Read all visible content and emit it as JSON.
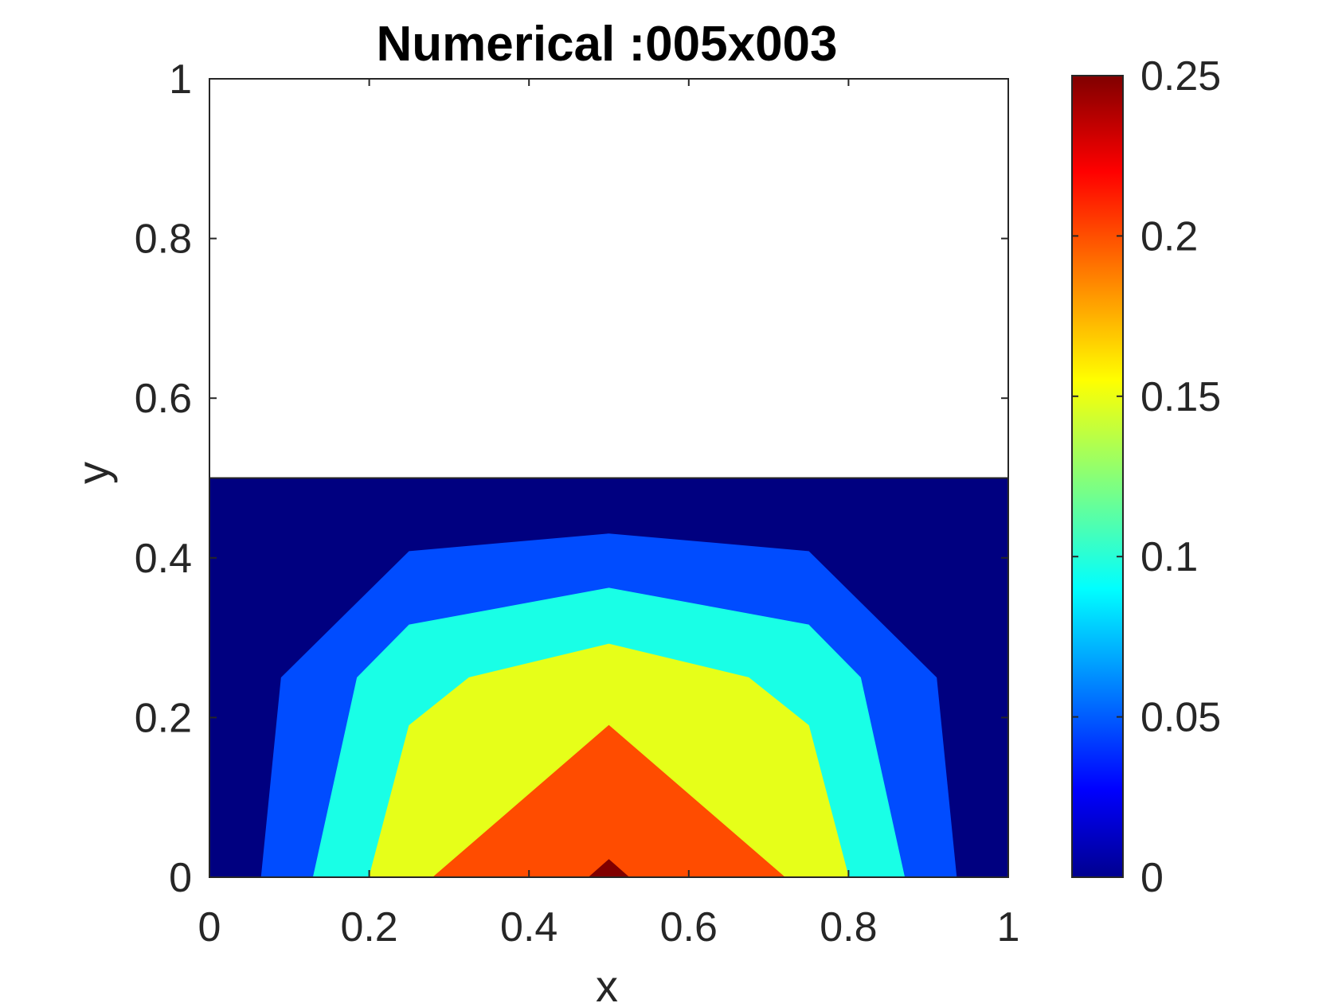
{
  "chart_data": {
    "type": "contour",
    "title": "Numerical :005x003",
    "xlabel": "x",
    "ylabel": "y",
    "xlim": [
      0,
      1
    ],
    "ylim": [
      0,
      1
    ],
    "xticks": [
      "0",
      "0.2",
      "0.4",
      "0.6",
      "0.8",
      "1"
    ],
    "yticks": [
      "0",
      "0.2",
      "0.4",
      "0.6",
      "0.8",
      "1"
    ],
    "grid": false,
    "domain_y_max": 0.5,
    "colormap": "jet",
    "colorbar": {
      "range": [
        0,
        0.25
      ],
      "ticks": [
        "0",
        "0.05",
        "0.1",
        "0.15",
        "0.2",
        "0.25"
      ],
      "stops": [
        "#00008f",
        "#0000ff",
        "#00ffff",
        "#ffff00",
        "#ff0000",
        "#800000"
      ]
    },
    "bands": [
      {
        "level": "0-0.05",
        "color": "#000080",
        "polygon": [
          [
            0,
            0
          ],
          [
            1,
            0
          ],
          [
            1,
            0.5
          ],
          [
            0,
            0.5
          ]
        ]
      },
      {
        "level": "0.05-0.1",
        "color": "#004cff",
        "polygon": [
          [
            0.065,
            0
          ],
          [
            0.935,
            0
          ],
          [
            0.91,
            0.25
          ],
          [
            0.75,
            0.408
          ],
          [
            0.5,
            0.43
          ],
          [
            0.25,
            0.408
          ],
          [
            0.09,
            0.25
          ]
        ]
      },
      {
        "level": "0.1-0.15",
        "color": "#19ffe6",
        "polygon": [
          [
            0.13,
            0
          ],
          [
            0.87,
            0
          ],
          [
            0.815,
            0.25
          ],
          [
            0.75,
            0.316
          ],
          [
            0.5,
            0.362
          ],
          [
            0.25,
            0.316
          ],
          [
            0.185,
            0.25
          ]
        ]
      },
      {
        "level": "0.15-0.2",
        "color": "#e6ff19",
        "polygon": [
          [
            0.2,
            0
          ],
          [
            0.8,
            0
          ],
          [
            0.75,
            0.19
          ],
          [
            0.675,
            0.25
          ],
          [
            0.5,
            0.292
          ],
          [
            0.325,
            0.25
          ],
          [
            0.25,
            0.19
          ]
        ]
      },
      {
        "level": "0.2-0.25",
        "color": "#ff4c00",
        "polygon": [
          [
            0.28,
            0
          ],
          [
            0.72,
            0
          ],
          [
            0.5,
            0.19
          ]
        ]
      },
      {
        "level": "0.25+",
        "color": "#800000",
        "polygon": [
          [
            0.475,
            0
          ],
          [
            0.525,
            0
          ],
          [
            0.5,
            0.022
          ]
        ]
      }
    ]
  }
}
